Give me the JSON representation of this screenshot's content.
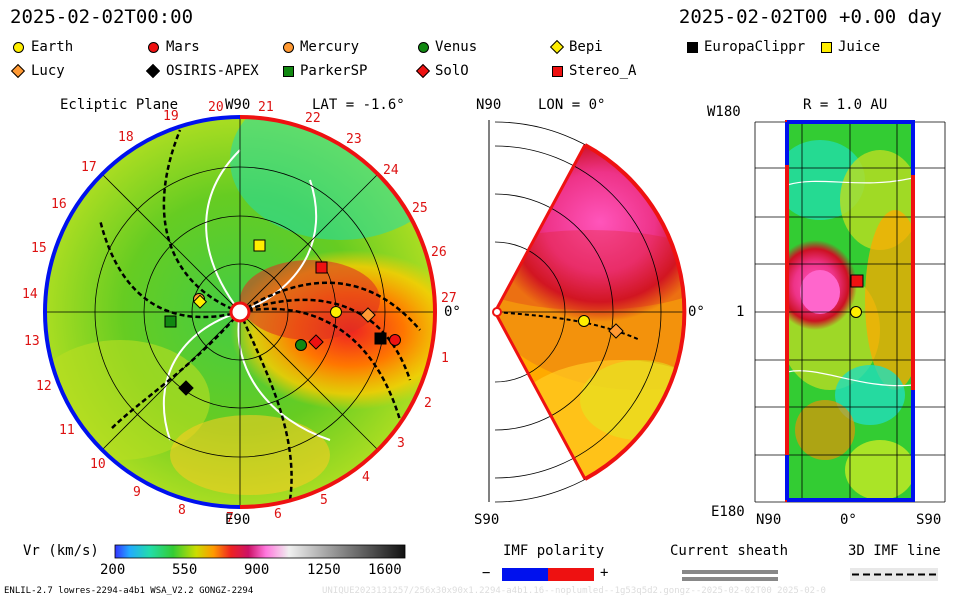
{
  "header": {
    "left_time": "2025-02-02T00:00",
    "right_time": "2025-02-02T00 +0.00 day"
  },
  "legend": [
    {
      "name": "Earth",
      "shape": "circle",
      "color": "#ffee00"
    },
    {
      "name": "Mars",
      "shape": "circle",
      "color": "#ee1111"
    },
    {
      "name": "Mercury",
      "shape": "circle",
      "color": "#ff9933"
    },
    {
      "name": "Venus",
      "shape": "circle",
      "color": "#118811"
    },
    {
      "name": "Bepi",
      "shape": "diamond",
      "color": "#ffee00"
    },
    {
      "name": "EuropaClippr",
      "shape": "square",
      "color": "#000000"
    },
    {
      "name": "Juice",
      "shape": "square",
      "color": "#ffee00"
    },
    {
      "name": "Lucy",
      "shape": "diamond",
      "color": "#ff9933"
    },
    {
      "name": "OSIRIS-APEX",
      "shape": "diamond",
      "color": "#000000"
    },
    {
      "name": "ParkerSP",
      "shape": "square",
      "color": "#118811"
    },
    {
      "name": "SolO",
      "shape": "diamond",
      "color": "#ee1111"
    },
    {
      "name": "Stereo_A",
      "shape": "square",
      "color": "#ee1111"
    }
  ],
  "panels": {
    "ecliptic": {
      "title": "Ecliptic Plane",
      "lat": "LAT = -1.6°",
      "top_label": "W90",
      "bottom_label": "E90",
      "right_label": "0°",
      "carrington": [
        "19",
        "20",
        "21",
        "22",
        "23",
        "24",
        "25",
        "26",
        "27",
        "1",
        "2",
        "3",
        "4",
        "5",
        "6",
        "7",
        "8",
        "9",
        "10",
        "11",
        "12",
        "13",
        "14",
        "15",
        "16",
        "17",
        "18"
      ]
    },
    "meridional": {
      "top_label": "N90",
      "lon": "LON = 0°",
      "bottom_label": "S90",
      "right_label": "0°"
    },
    "radial": {
      "r_label": "R = 1.0 AU",
      "top_left": "W180",
      "mid_left": "1",
      "bottom_left": "E180",
      "bottom_n": "N90",
      "bottom_mid": "0°",
      "bottom_s": "S90"
    }
  },
  "colorbar": {
    "label": "Vr (km/s)",
    "ticks": [
      "200",
      "550",
      "900",
      "1250",
      "1600"
    ]
  },
  "imf": {
    "label": "IMF polarity",
    "minus": "−",
    "plus": "+",
    "colors": [
      "#0011ee",
      "#ee1111"
    ]
  },
  "sheath": {
    "label": "Current sheath"
  },
  "imf3d": {
    "label": "3D IMF line"
  },
  "footer": {
    "left": "ENLIL-2.7 lowres-2294-a4b1 WSA_V2.2 GONGZ-2294",
    "right": "UNIQUE2023131257/256x30x90x1.2294-a4b1.16--noplumled--1g53q5d2.gongz--2025-02-02T00   2025-02-0"
  }
}
